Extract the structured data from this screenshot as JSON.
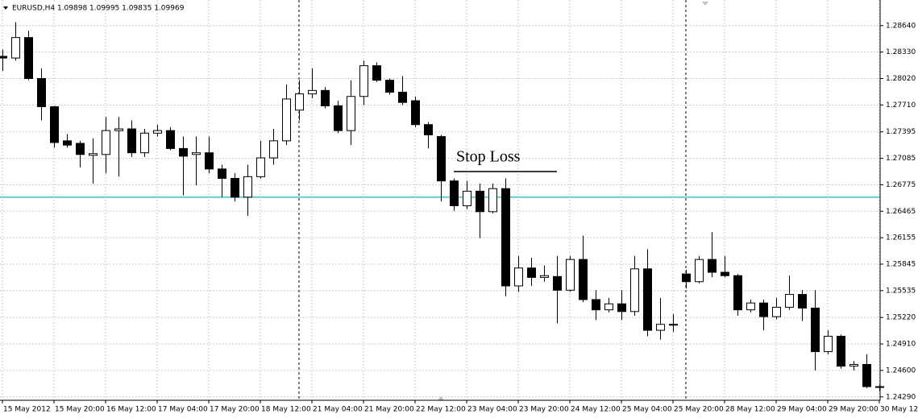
{
  "chart_data": {
    "type": "candlestick",
    "title": "EURUSD,H4  1.09898 1.09995 1.09835 1.09969",
    "categories": [
      "15 May 2012",
      null,
      null,
      null,
      "15 May 20:00",
      null,
      null,
      null,
      "16 May 12:00",
      null,
      null,
      null,
      "17 May 04:00",
      null,
      null,
      null,
      "17 May 20:00",
      null,
      null,
      null,
      "18 May 12:00",
      null,
      null,
      null,
      "21 May 04:00",
      null,
      null,
      null,
      "21 May 20:00",
      null,
      null,
      null,
      "22 May 12:00",
      null,
      null,
      null,
      "23 May 04:00",
      null,
      null,
      null,
      "23 May 20:00",
      null,
      null,
      null,
      "24 May 12:00",
      null,
      null,
      null,
      "25 May 04:00",
      null,
      null,
      null,
      "25 May 20:00",
      null,
      null,
      null,
      "28 May 12:00",
      null,
      null,
      null,
      "29 May 04:00",
      null,
      null,
      null,
      "29 May 20:00",
      null,
      null,
      null,
      "30 May 12:"
    ],
    "open": [
      1.2828,
      1.2826,
      1.285,
      1.2802,
      1.2769,
      1.2729,
      1.2726,
      1.2712,
      1.2713,
      1.2741,
      1.2743,
      1.2715,
      1.2738,
      1.2741,
      1.272,
      1.2713,
      1.2715,
      1.2696,
      1.2685,
      1.2663,
      1.2687,
      1.2709,
      1.2729,
      1.2765,
      1.2784,
      1.2788,
      1.277,
      1.2741,
      1.2781,
      1.2817,
      1.28,
      1.2786,
      1.2776,
      1.2748,
      1.2734,
      1.2682,
      1.2653,
      1.267,
      1.2646,
      1.2673,
      1.2559,
      1.258,
      1.2569,
      1.257,
      1.2554,
      1.259,
      1.2543,
      1.2531,
      1.2538,
      1.2529,
      1.2579,
      1.2507,
      1.2513,
      1.2573,
      1.2564,
      1.259,
      1.2575,
      1.2571,
      1.2531,
      1.2539,
      1.2523,
      1.2534,
      1.2549,
      1.2533,
      1.2482,
      1.25,
      1.2465,
      1.2467,
      1.2441
    ],
    "high": [
      1.2836,
      1.2868,
      1.2858,
      1.2814,
      1.277,
      1.2737,
      1.2729,
      1.2732,
      1.2757,
      1.2757,
      1.2753,
      1.2743,
      1.2748,
      1.2745,
      1.2734,
      1.2734,
      1.2734,
      1.2701,
      1.2691,
      1.2701,
      1.2729,
      1.2743,
      1.2795,
      1.28,
      1.2814,
      1.2792,
      1.2776,
      1.28,
      1.2823,
      1.2821,
      1.2802,
      1.2805,
      1.2781,
      1.2751,
      1.2736,
      1.2685,
      1.2682,
      1.2679,
      1.2679,
      1.2685,
      1.2594,
      1.2592,
      1.2583,
      1.2594,
      1.2594,
      1.2618,
      1.2554,
      1.2545,
      1.2554,
      1.2594,
      1.2602,
      1.2545,
      1.2526,
      1.2578,
      1.2594,
      1.2622,
      1.2594,
      1.2573,
      1.2543,
      1.2543,
      1.2545,
      1.2571,
      1.2554,
      1.2554,
      1.2507,
      1.2502,
      1.2471,
      1.2479,
      1.2443
    ],
    "low": [
      1.2811,
      1.2823,
      1.28,
      1.2753,
      1.2721,
      1.2721,
      1.2698,
      1.2679,
      1.2691,
      1.2687,
      1.271,
      1.271,
      1.2734,
      1.2718,
      1.2665,
      1.2677,
      1.2691,
      1.2663,
      1.2658,
      1.2641,
      1.2685,
      1.2701,
      1.2724,
      1.2753,
      1.2779,
      1.2767,
      1.2738,
      1.2724,
      1.2771,
      1.2798,
      1.2783,
      1.2771,
      1.2745,
      1.272,
      1.2658,
      1.2647,
      1.2649,
      1.2615,
      1.2644,
      1.2547,
      1.2552,
      1.2559,
      1.2564,
      1.2515,
      1.2552,
      1.254,
      1.2519,
      1.2528,
      1.2519,
      1.2524,
      1.25,
      1.2496,
      1.2505,
      1.2556,
      1.2562,
      1.2569,
      1.2569,
      1.2524,
      1.2528,
      1.2507,
      1.252,
      1.2531,
      1.2518,
      1.246,
      1.2479,
      1.2462,
      1.246,
      1.2439,
      1.2436
    ],
    "close": [
      1.2826,
      1.285,
      1.2802,
      1.2769,
      1.2727,
      1.2724,
      1.2713,
      1.2714,
      1.2741,
      1.2743,
      1.2715,
      1.2738,
      1.2741,
      1.272,
      1.2711,
      1.2715,
      1.2696,
      1.2685,
      1.2663,
      1.2687,
      1.2709,
      1.2729,
      1.2778,
      1.2784,
      1.2788,
      1.277,
      1.2741,
      1.2781,
      1.2817,
      1.28,
      1.2786,
      1.2774,
      1.2748,
      1.2736,
      1.2682,
      1.2653,
      1.267,
      1.2646,
      1.2673,
      1.2559,
      1.258,
      1.2569,
      1.2571,
      1.2554,
      1.259,
      1.2543,
      1.2531,
      1.2538,
      1.2529,
      1.2579,
      1.2507,
      1.2514,
      1.2514,
      1.2564,
      1.259,
      1.2575,
      1.2571,
      1.2531,
      1.2539,
      1.2523,
      1.2534,
      1.2549,
      1.2533,
      1.2482,
      1.25,
      1.2465,
      1.2467,
      1.2441,
      1.2441
    ],
    "up_color": "#ffffff",
    "down_color": "#000000",
    "ylim": [
      1.2425,
      1.2894
    ],
    "yticks": [
      {
        "value": 1.2864,
        "label": "1.28640"
      },
      {
        "value": 1.2833,
        "label": "1.28330"
      },
      {
        "value": 1.2802,
        "label": "1.28020"
      },
      {
        "value": 1.2771,
        "label": "1.27710"
      },
      {
        "value": 1.27395,
        "label": "1.27395"
      },
      {
        "value": 1.27085,
        "label": "1.27085"
      },
      {
        "value": 1.26775,
        "label": "1.26775"
      },
      {
        "value": 1.26465,
        "label": "1.26465"
      },
      {
        "value": 1.26155,
        "label": "1.26155"
      },
      {
        "value": 1.25845,
        "label": "1.25845"
      },
      {
        "value": 1.25535,
        "label": "1.25535"
      },
      {
        "value": 1.2522,
        "label": "1.25220"
      },
      {
        "value": 1.2491,
        "label": "1.24910"
      },
      {
        "value": 1.246,
        "label": "1.24600"
      },
      {
        "value": 1.2429,
        "label": "1.24290"
      }
    ],
    "grid": true,
    "hline": 1.2663,
    "hline_color": "#66cccc",
    "annotation": "Stop Loss"
  }
}
